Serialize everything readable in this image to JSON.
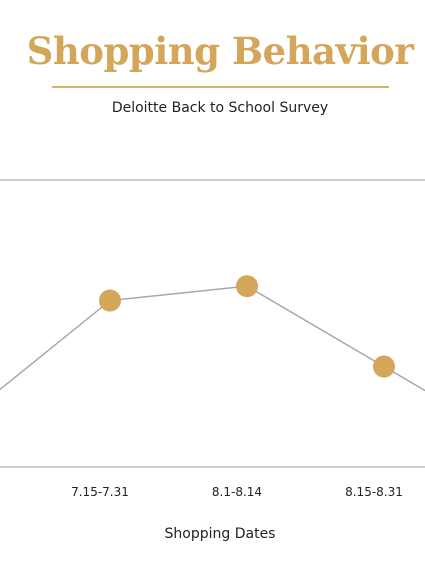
{
  "header": {
    "title": "Shopping Behavior",
    "subtitle": "Deloitte Back to School Survey"
  },
  "colors": {
    "accent": "#d4a65a",
    "line": "#a8a8a8",
    "axis": "#bdbdbd"
  },
  "chart_data": {
    "type": "line",
    "title": "Shopping Behavior",
    "subtitle": "Deloitte Back to School Survey",
    "xlabel": "Shopping Dates",
    "ylabel": "",
    "categories": [
      "7.15-7.31",
      "8.1-8.14",
      "8.15-8.31"
    ],
    "series": [
      {
        "values": [
          58,
          63,
          35
        ]
      }
    ],
    "ylim": [
      0,
      100
    ],
    "grid": false,
    "legend": "none"
  }
}
